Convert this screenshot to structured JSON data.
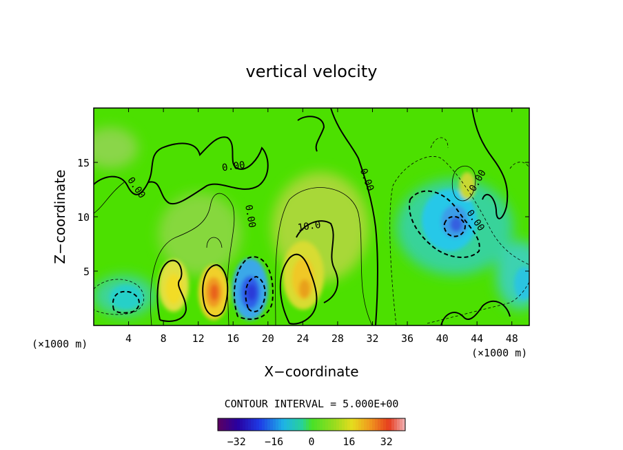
{
  "chart_data": {
    "type": "heatmap",
    "title": "vertical velocity",
    "xlabel": "X−coordinate",
    "ylabel": "Z−coordinate",
    "x_unit_label": "(×1000 m)",
    "y_unit_label": "(×1000 m)",
    "xlim": [
      0,
      50
    ],
    "ylim": [
      0,
      20
    ],
    "x_ticks": [
      4,
      8,
      12,
      16,
      20,
      24,
      28,
      32,
      36,
      40,
      44,
      48
    ],
    "y_ticks": [
      5,
      10,
      15
    ],
    "x_tick_labels": [
      "4",
      "8",
      "12",
      "16",
      "20",
      "24",
      "28",
      "32",
      "36",
      "40",
      "44",
      "48"
    ],
    "y_tick_labels": [
      "5",
      "10",
      "15"
    ],
    "contour_interval_label": "CONTOUR INTERVAL = 5.000E+00",
    "contour_interval": 5,
    "contour_labels": [
      "0.00",
      "0.00",
      "0.00",
      "0.00",
      "0.00",
      "10.0",
      "0.00"
    ],
    "colorbar": {
      "min": -40,
      "max": 40,
      "tick_values": [
        -32,
        -16,
        0,
        16,
        32
      ],
      "tick_labels": [
        "−32",
        "−16",
        "0",
        "16",
        "32"
      ]
    },
    "cells": [
      {
        "x": 3.5,
        "z": 2.5,
        "w": -12
      },
      {
        "x": 9.0,
        "z": 3.6,
        "w": 20
      },
      {
        "x": 13.8,
        "z": 3.0,
        "w": 30
      },
      {
        "x": 18.0,
        "z": 3.0,
        "w": -28
      },
      {
        "x": 24.5,
        "z": 4.0,
        "w": 20
      },
      {
        "x": 26.5,
        "z": 8.0,
        "w": 8
      },
      {
        "x": 14.5,
        "z": 8.0,
        "w": 5
      },
      {
        "x": 41.8,
        "z": 9.5,
        "w": -20
      },
      {
        "x": 49.5,
        "z": 3.5,
        "w": -10
      },
      {
        "x": 43.0,
        "z": 12.0,
        "w": 10
      }
    ]
  }
}
